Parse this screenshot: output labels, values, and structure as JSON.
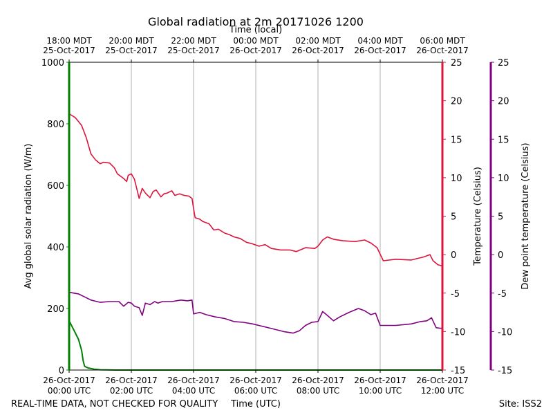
{
  "chart_data": {
    "type": "line",
    "title": "Global radiation at 2m 20171026 1200",
    "xlabel_bottom": "Time (UTC)",
    "xlabel_top": "Time (local)",
    "footer_left": "REAL-TIME DATA, NOT CHECKED FOR QUALITY",
    "footer_right": "Site: ISS2",
    "x_hours_range": [
      0,
      12
    ],
    "bottom_ticks": [
      {
        "h": 0,
        "l1": "26-Oct-2017",
        "l2": "00:00 UTC"
      },
      {
        "h": 2,
        "l1": "26-Oct-2017",
        "l2": "02:00 UTC"
      },
      {
        "h": 4,
        "l1": "26-Oct-2017",
        "l2": "04:00 UTC"
      },
      {
        "h": 6,
        "l1": "26-Oct-2017",
        "l2": "06:00 UTC"
      },
      {
        "h": 8,
        "l1": "26-Oct-2017",
        "l2": "08:00 UTC"
      },
      {
        "h": 10,
        "l1": "26-Oct-2017",
        "l2": "10:00 UTC"
      },
      {
        "h": 12,
        "l1": "26-Oct-2017",
        "l2": "12:00 UTC"
      }
    ],
    "top_ticks": [
      {
        "h": 0,
        "l1": "18:00 MDT",
        "l2": "25-Oct-2017"
      },
      {
        "h": 2,
        "l1": "20:00 MDT",
        "l2": "25-Oct-2017"
      },
      {
        "h": 4,
        "l1": "22:00 MDT",
        "l2": "25-Oct-2017"
      },
      {
        "h": 6,
        "l1": "00:00 MDT",
        "l2": "26-Oct-2017"
      },
      {
        "h": 8,
        "l1": "02:00 MDT",
        "l2": "26-Oct-2017"
      },
      {
        "h": 10,
        "l1": "04:00 MDT",
        "l2": "26-Oct-2017"
      },
      {
        "h": 12,
        "l1": "06:00 MDT",
        "l2": "26-Oct-2017"
      }
    ],
    "axes": {
      "radiation": {
        "label": "Avg global solar radiation (W/m)",
        "ylim": [
          0,
          1000
        ],
        "ticks": [
          0,
          200,
          400,
          600,
          800,
          1000
        ],
        "color": "#008000"
      },
      "temperature": {
        "label": "Temperature (Celsius)",
        "ylim": [
          -15,
          25
        ],
        "ticks": [
          -15,
          -10,
          -5,
          0,
          5,
          10,
          15,
          20,
          25
        ],
        "color": "#dc143c"
      },
      "dewpoint": {
        "label": "Dew point temperature (Celsius)",
        "ylim": [
          -15,
          25
        ],
        "ticks": [
          -15,
          -10,
          -5,
          0,
          5,
          10,
          15,
          20,
          25
        ],
        "color": "#800080"
      }
    },
    "series": [
      {
        "name": "Avg global solar radiation",
        "axis": "radiation",
        "x": [
          0,
          0.15,
          0.3,
          0.4,
          0.45,
          0.5,
          0.6,
          0.8,
          1.0,
          1.5,
          2,
          4,
          6,
          8,
          10,
          12
        ],
        "y": [
          160,
          130,
          100,
          65,
          30,
          12,
          7,
          3,
          1,
          0,
          0,
          0,
          0,
          0,
          0,
          0
        ]
      },
      {
        "name": "Temperature",
        "axis": "temperature",
        "x": [
          0,
          0.2,
          0.4,
          0.55,
          0.7,
          0.85,
          1.0,
          1.1,
          1.3,
          1.45,
          1.55,
          1.65,
          1.75,
          1.85,
          1.9,
          2.0,
          2.1,
          2.25,
          2.35,
          2.45,
          2.5,
          2.6,
          2.7,
          2.8,
          2.95,
          3.05,
          3.15,
          3.3,
          3.4,
          3.55,
          3.7,
          3.85,
          3.95,
          4.0,
          4.05,
          4.2,
          4.3,
          4.5,
          4.65,
          4.8,
          5.0,
          5.15,
          5.3,
          5.5,
          5.7,
          5.9,
          6.1,
          6.3,
          6.5,
          6.8,
          7.1,
          7.3,
          7.6,
          7.9,
          8.0,
          8.15,
          8.3,
          8.5,
          8.8,
          9.2,
          9.5,
          9.7,
          9.9,
          10.1,
          10.5,
          11.0,
          11.4,
          11.6,
          11.7,
          11.85,
          12.0
        ],
        "y": [
          18.3,
          17.8,
          16.8,
          15.2,
          13.1,
          12.3,
          11.8,
          12.0,
          11.9,
          11.3,
          10.5,
          10.2,
          9.9,
          9.5,
          10.3,
          10.5,
          9.8,
          7.3,
          8.6,
          8.0,
          7.8,
          7.4,
          8.2,
          8.4,
          7.5,
          7.9,
          8.0,
          8.3,
          7.7,
          7.9,
          7.7,
          7.6,
          7.3,
          6.0,
          4.8,
          4.6,
          4.3,
          4.0,
          3.2,
          3.3,
          2.8,
          2.6,
          2.3,
          2.1,
          1.6,
          1.4,
          1.1,
          1.3,
          0.8,
          0.6,
          0.6,
          0.4,
          0.9,
          0.8,
          1.1,
          1.9,
          2.3,
          2.0,
          1.8,
          1.7,
          1.9,
          1.5,
          0.9,
          -0.8,
          -0.6,
          -0.7,
          -0.3,
          0.0,
          -0.8,
          -1.3,
          -1.5
        ]
      },
      {
        "name": "Dew point temperature",
        "axis": "dewpoint",
        "x": [
          0,
          0.3,
          0.5,
          0.7,
          1.0,
          1.3,
          1.6,
          1.75,
          1.9,
          2.0,
          2.1,
          2.25,
          2.35,
          2.45,
          2.6,
          2.75,
          2.85,
          3.0,
          3.3,
          3.6,
          3.8,
          3.95,
          4.0,
          4.2,
          4.4,
          4.7,
          5.0,
          5.3,
          5.6,
          5.9,
          6.2,
          6.5,
          6.9,
          7.2,
          7.4,
          7.6,
          7.8,
          8.0,
          8.15,
          8.3,
          8.5,
          8.7,
          9.0,
          9.3,
          9.5,
          9.7,
          9.85,
          10.0,
          10.5,
          11.0,
          11.3,
          11.5,
          11.65,
          11.8,
          12.0
        ],
        "y": [
          -4.9,
          -5.1,
          -5.5,
          -5.9,
          -6.2,
          -6.1,
          -6.1,
          -6.7,
          -6.2,
          -6.3,
          -6.7,
          -6.9,
          -7.9,
          -6.3,
          -6.5,
          -6.1,
          -6.3,
          -6.1,
          -6.1,
          -5.9,
          -6.0,
          -5.9,
          -7.7,
          -7.5,
          -7.8,
          -8.1,
          -8.3,
          -8.7,
          -8.8,
          -9.0,
          -9.3,
          -9.6,
          -10.0,
          -10.2,
          -9.9,
          -9.2,
          -8.8,
          -8.7,
          -7.4,
          -7.9,
          -8.6,
          -8.1,
          -7.5,
          -7.0,
          -7.3,
          -7.8,
          -7.6,
          -9.2,
          -9.2,
          -9.0,
          -8.7,
          -8.6,
          -8.2,
          -9.5,
          -9.6
        ]
      }
    ]
  }
}
